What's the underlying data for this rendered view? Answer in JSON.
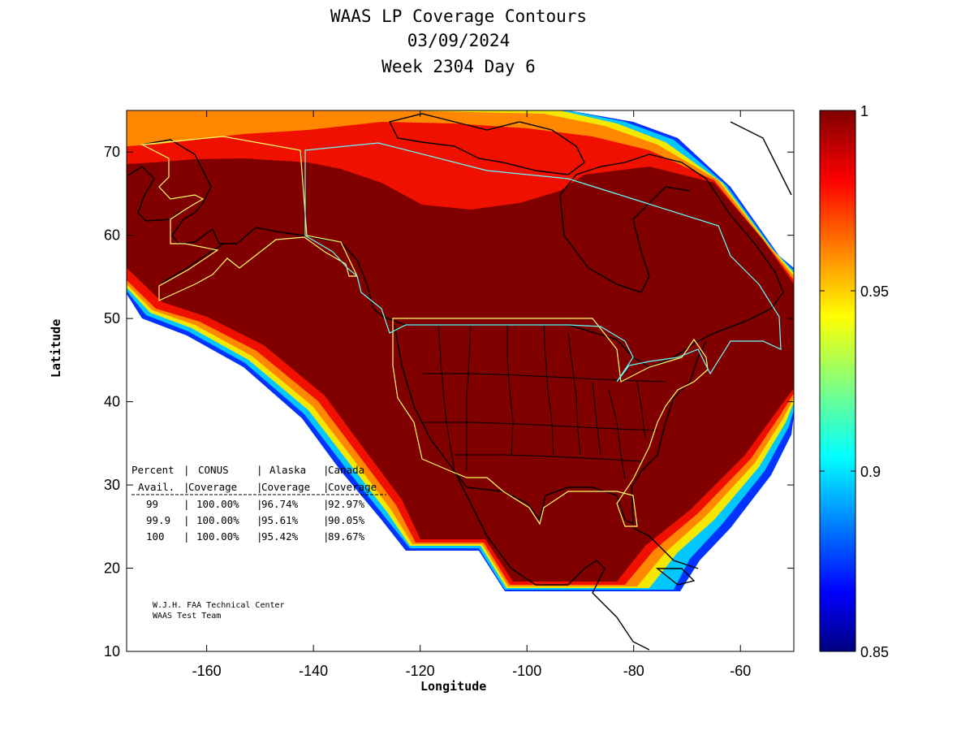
{
  "title": {
    "line1": "WAAS LP Coverage Contours",
    "line2": "03/09/2024",
    "line3": "Week 2304 Day 6"
  },
  "axes": {
    "xlabel": "Longitude",
    "ylabel": "Latitude",
    "xlim": [
      -175,
      -50
    ],
    "ylim": [
      10,
      75
    ],
    "xticks": [
      -160,
      -140,
      -120,
      -100,
      -80,
      -60
    ],
    "yticks": [
      10,
      20,
      30,
      40,
      50,
      60,
      70
    ]
  },
  "colorbar": {
    "min": 0.85,
    "max": 1,
    "ticks": [
      "1",
      "0.95",
      "0.9",
      "0.85"
    ],
    "colormap": "jet",
    "top_color": "#800000",
    "bottom_color": "#000080"
  },
  "coverage_table": {
    "header1": [
      "Percent",
      "CONUS",
      "Alaska",
      "Canada"
    ],
    "header2": [
      "Avail.",
      "Coverage",
      "Coverage",
      "Coverage"
    ],
    "rows": [
      [
        "99",
        "100.00%",
        "96.74%",
        "92.97%"
      ],
      [
        "99.9",
        "100.00%",
        "95.61%",
        "90.05%"
      ],
      [
        "100",
        "100.00%",
        "95.42%",
        "89.67%"
      ]
    ]
  },
  "credit": {
    "line1": "W.J.H. FAA Technical Center",
    "line2": "WAAS Test Team"
  },
  "chart_data": {
    "type": "heatmap",
    "title": "WAAS LP Coverage Contours",
    "xlabel": "Longitude",
    "ylabel": "Latitude",
    "xlim": [
      -175,
      -50
    ],
    "ylim": [
      10,
      75
    ],
    "value_range": [
      0.85,
      1
    ],
    "colors": {
      "full_coverage": "#800000",
      "boundary_outline": "#ffff00",
      "canada_outline": "#00ffff",
      "coastline": "#000000"
    }
  }
}
